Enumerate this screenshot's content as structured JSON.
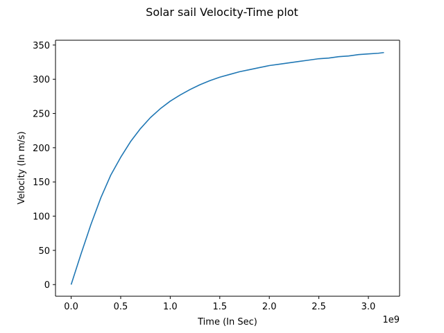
{
  "chart_data": {
    "type": "line",
    "title": "Solar sail Velocity-Time plot",
    "xlabel": "Time (In Sec)",
    "ylabel": "Velocity (In m/s)",
    "x_offset_label": "1e9",
    "xlim": [
      -0.158,
      3.315
    ],
    "ylim": [
      -17,
      357
    ],
    "x_ticks": [
      0.0,
      0.5,
      1.0,
      1.5,
      2.0,
      2.5,
      3.0
    ],
    "x_tick_labels": [
      "0.0",
      "0.5",
      "1.0",
      "1.5",
      "2.0",
      "2.5",
      "3.0"
    ],
    "y_ticks": [
      0,
      50,
      100,
      150,
      200,
      250,
      300,
      350
    ],
    "y_tick_labels": [
      "0",
      "50",
      "100",
      "150",
      "200",
      "250",
      "300",
      "350"
    ],
    "grid": false,
    "series": [
      {
        "color": "#1f77b4",
        "x": [
          0.0,
          0.1,
          0.2,
          0.3,
          0.4,
          0.5,
          0.6,
          0.7,
          0.8,
          0.9,
          1.0,
          1.1,
          1.2,
          1.3,
          1.4,
          1.5,
          1.6,
          1.7,
          1.8,
          1.9,
          2.0,
          2.1,
          2.2,
          2.3,
          2.4,
          2.5,
          2.6,
          2.7,
          2.8,
          2.9,
          3.0,
          3.1,
          3.157
        ],
        "y": [
          0,
          45,
          88,
          127,
          160,
          186,
          209,
          228,
          244,
          257,
          268,
          277,
          285,
          292,
          298,
          303,
          307,
          311,
          314,
          317,
          320,
          322,
          324,
          326,
          328,
          330,
          331,
          333,
          334,
          336,
          337,
          338,
          339
        ]
      }
    ]
  }
}
